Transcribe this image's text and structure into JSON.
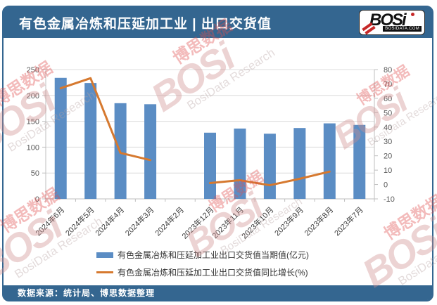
{
  "header": {
    "title": "有色金属冶炼和压延加工业 | 出口交货值",
    "logo": {
      "brand": "BOSi",
      "site": "BOSIDATA.COM"
    }
  },
  "footer": {
    "source": "数据来源：统计局、博思数据整理"
  },
  "watermark": {
    "brand": "BOSi",
    "cn": "博思数据",
    "en": "BosiData Research",
    "site": "BOSIDATA.COM"
  },
  "colors": {
    "band_blue": "#346690",
    "bar_blue": "#5B8DC4",
    "line_orange": "#D6792F",
    "grid": "#DCDCDC",
    "axis_line": "#BFBFBF",
    "axis_text": "#595959"
  },
  "chart_data": {
    "type": "bar",
    "subtype": "bar-line combo, dual axis",
    "title": "有色金属冶炼和压延加工业 | 出口交货值",
    "categories": [
      "2024年6月",
      "2024年5月",
      "2024年4月",
      "2024年3月",
      "2024年2月",
      "2023年12月",
      "2023年11月",
      "2023年10月",
      "2023年9月",
      "2023年8月",
      "2023年7月"
    ],
    "series": [
      {
        "name": "有色金属冶炼和压延加工业出口交货值当期值(亿元)",
        "type": "bar",
        "axis": "left",
        "color": "#5B8DC4",
        "values": [
          234,
          224,
          185,
          183,
          null,
          128,
          136,
          126,
          137,
          146,
          143
        ]
      },
      {
        "name": "有色金属冶炼和压延加工业出口交货值同比增长(%)",
        "type": "line",
        "axis": "right",
        "color": "#D6792F",
        "values": [
          67,
          74,
          22,
          17,
          null,
          1,
          3,
          -0.5,
          4,
          9,
          null
        ]
      }
    ],
    "left_axis": {
      "min": 0,
      "max": 250,
      "step": 50
    },
    "right_axis": {
      "min": -10,
      "max": 80,
      "step": 10
    },
    "grid": "horizontal gridlines on",
    "legend_position": "bottom"
  }
}
